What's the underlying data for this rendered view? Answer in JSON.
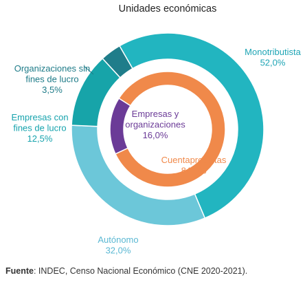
{
  "chart_data": {
    "type": "donut",
    "title": "Unidades económicas",
    "outer_ring": [
      {
        "label": [
          "Monotributista",
          "52,0%"
        ],
        "value": 52.0,
        "color": "#22b5c0",
        "label_color": "#1fa5b5"
      },
      {
        "label": [
          "Autónomo",
          "32,0%"
        ],
        "value": 32.0,
        "color": "#6cc7d9",
        "label_color": "#5bb8d3"
      },
      {
        "label": [
          "Empresas con",
          "fines de lucro",
          "12,5%"
        ],
        "value": 12.5,
        "color": "#17a4a9",
        "label_color": "#16a3ad"
      },
      {
        "label": [
          "Organizaciones sin",
          "fines de lucro",
          "3,5%"
        ],
        "value": 3.5,
        "color": "#1f7d8a",
        "label_color": "#1e7b88"
      }
    ],
    "inner_ring": [
      {
        "label": [
          "Cuentapropistas",
          "84,0%"
        ],
        "value": 84.0,
        "color": "#f0894a",
        "label_color": "#f0894a"
      },
      {
        "label": [
          "Empresas y",
          "organizaciones",
          "16,0%"
        ],
        "value": 16.0,
        "color": "#6b3b97",
        "label_color": "#6b3b97"
      }
    ]
  },
  "source": {
    "label": "Fuente",
    "text": ": INDEC, Censo Nacional Económico (CNE 2020-2021)."
  }
}
